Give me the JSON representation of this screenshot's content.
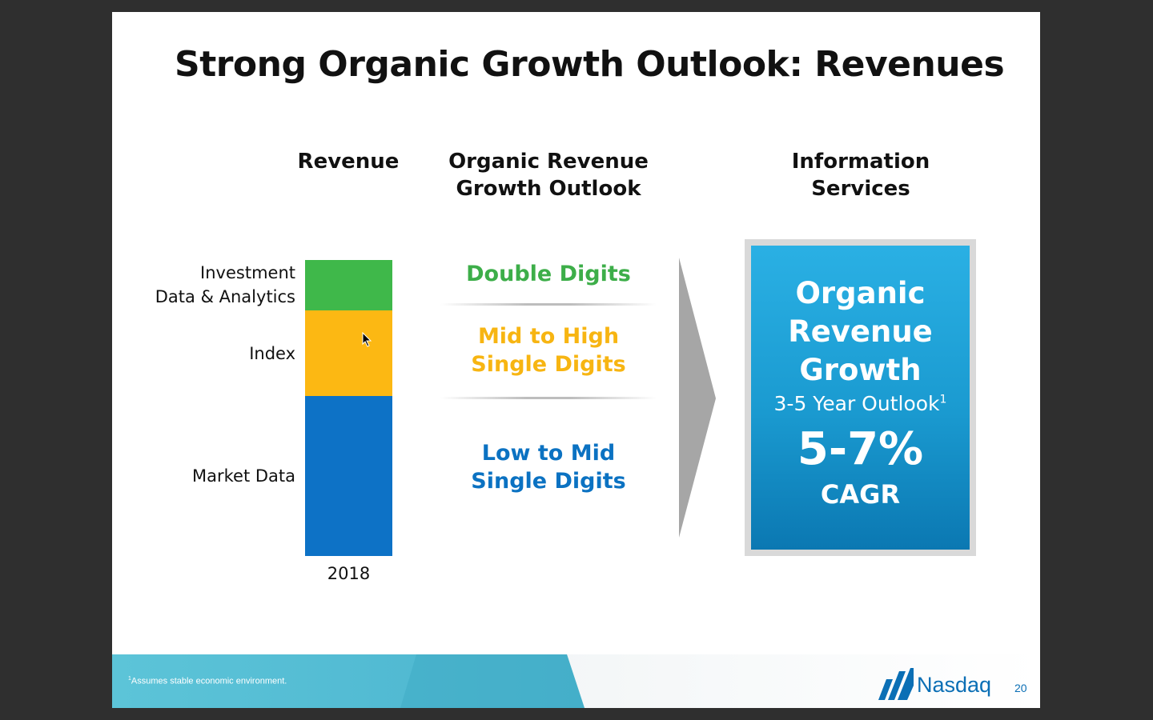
{
  "slide": {
    "title": "Strong Organic Growth Outlook: Revenues",
    "column_headers": {
      "revenue": "Revenue",
      "outlook": "Organic Revenue\nGrowth Outlook",
      "info": "Information\nServices"
    },
    "outlooks": [
      {
        "label": "Double Digits",
        "color": "#3dae49"
      },
      {
        "label": "Mid to High\nSingle Digits",
        "color": "#f7b512"
      },
      {
        "label": "Low to Mid\nSingle Digits",
        "color": "#0b72c2"
      }
    ],
    "info_box": {
      "heading": "Organic\nRevenue\nGrowth",
      "sub": "3-5 Year Outlook",
      "sub_sup": "1",
      "big": "5-7%",
      "cagr": "CAGR"
    },
    "footnote_sup": "1",
    "footnote": "Assumes stable economic environment.",
    "logo_text": "Nasdaq",
    "page_number": "20"
  },
  "chart_data": {
    "type": "bar",
    "categories": [
      "2018"
    ],
    "series": [
      {
        "name": "Market Data",
        "values": [
          54
        ],
        "color": "#0d72c6"
      },
      {
        "name": "Index",
        "values": [
          29
        ],
        "color": "#fcb813"
      },
      {
        "name": "Investment\nData & Analytics",
        "values": [
          17
        ],
        "color": "#3fb84a"
      }
    ],
    "stacked": true,
    "ylim": [
      0,
      100
    ]
  }
}
